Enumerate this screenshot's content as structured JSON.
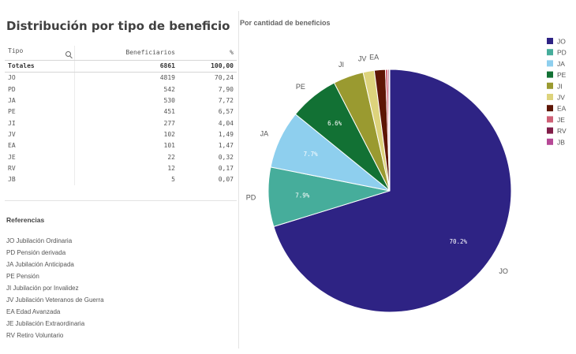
{
  "left_title": "Distribución por tipo de beneficio",
  "table": {
    "headers": {
      "tipo": "Tipo",
      "beneficiarios": "Beneficiarios",
      "pct": "%"
    },
    "totals": {
      "label": "Totales",
      "beneficiarios": "6861",
      "pct": "100,00"
    },
    "rows": [
      {
        "tipo": "JO",
        "beneficiarios": "4819",
        "pct": "70,24"
      },
      {
        "tipo": "PD",
        "beneficiarios": "542",
        "pct": "7,90"
      },
      {
        "tipo": "JA",
        "beneficiarios": "530",
        "pct": "7,72"
      },
      {
        "tipo": "PE",
        "beneficiarios": "451",
        "pct": "6,57"
      },
      {
        "tipo": "JI",
        "beneficiarios": "277",
        "pct": "4,04"
      },
      {
        "tipo": "JV",
        "beneficiarios": "102",
        "pct": "1,49"
      },
      {
        "tipo": "EA",
        "beneficiarios": "101",
        "pct": "1,47"
      },
      {
        "tipo": "JE",
        "beneficiarios": "22",
        "pct": "0,32"
      },
      {
        "tipo": "RV",
        "beneficiarios": "12",
        "pct": "0,17"
      },
      {
        "tipo": "JB",
        "beneficiarios": "5",
        "pct": "0,07"
      }
    ]
  },
  "referencias": {
    "title": "Referencias",
    "items": [
      "JO Jubilación Ordinaria",
      "PD Pensión derivada",
      "JA Jubilación Anticipada",
      "PE Pensión",
      "JI Jubilación por Invalidez",
      "JV Jubilación Veteranos de Guerra",
      "EA Edad Avanzada",
      "JE Jubilación Extraordinaria",
      "RV Retiro Voluntario"
    ]
  },
  "chart_data": {
    "type": "pie",
    "title": "Por cantidad de beneficios",
    "legend_position": "top-right",
    "slices": [
      {
        "label": "JO",
        "value": 4819,
        "color": "#2e2384",
        "pct_label": "70.2%"
      },
      {
        "label": "PD",
        "value": 542,
        "color": "#46ad9b",
        "pct_label": "7.9%"
      },
      {
        "label": "JA",
        "value": 530,
        "color": "#8ecfee",
        "pct_label": "7.7%"
      },
      {
        "label": "PE",
        "value": 451,
        "color": "#127134",
        "pct_label": "6.6%"
      },
      {
        "label": "JI",
        "value": 277,
        "color": "#9a9a30",
        "pct_label": ""
      },
      {
        "label": "JV",
        "value": 102,
        "color": "#ddd37c",
        "pct_label": ""
      },
      {
        "label": "EA",
        "value": 101,
        "color": "#5e1605",
        "pct_label": ""
      },
      {
        "label": "JE",
        "value": 22,
        "color": "#cf6076",
        "pct_label": ""
      },
      {
        "label": "RV",
        "value": 12,
        "color": "#801d48",
        "pct_label": ""
      },
      {
        "label": "JB",
        "value": 5,
        "color": "#b64896",
        "pct_label": ""
      }
    ]
  }
}
